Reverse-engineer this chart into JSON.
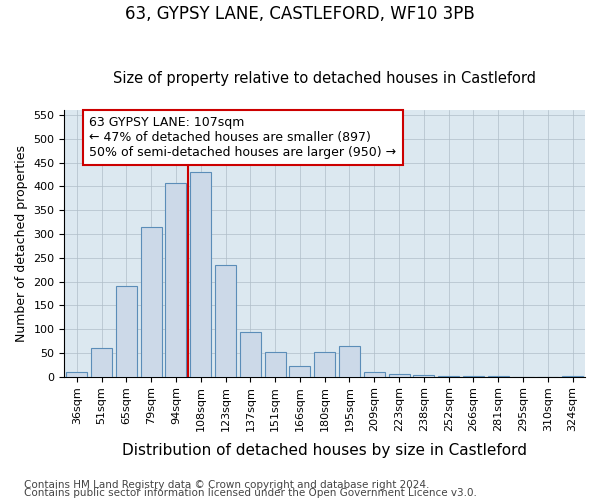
{
  "title1": "63, GYPSY LANE, CASTLEFORD, WF10 3PB",
  "title2": "Size of property relative to detached houses in Castleford",
  "xlabel": "Distribution of detached houses by size in Castleford",
  "ylabel": "Number of detached properties",
  "categories": [
    "36sqm",
    "51sqm",
    "65sqm",
    "79sqm",
    "94sqm",
    "108sqm",
    "123sqm",
    "137sqm",
    "151sqm",
    "166sqm",
    "180sqm",
    "195sqm",
    "209sqm",
    "223sqm",
    "238sqm",
    "252sqm",
    "266sqm",
    "281sqm",
    "295sqm",
    "310sqm",
    "324sqm"
  ],
  "values": [
    10,
    60,
    190,
    315,
    408,
    430,
    235,
    93,
    52,
    22,
    52,
    65,
    9,
    5,
    3,
    2,
    1,
    1,
    0,
    0,
    2
  ],
  "bar_color": "#ccd9e8",
  "bar_edge_color": "#5b8db8",
  "vline_color": "#cc0000",
  "annotation_text": "63 GYPSY LANE: 107sqm\n← 47% of detached houses are smaller (897)\n50% of semi-detached houses are larger (950) →",
  "annotation_box_facecolor": "white",
  "annotation_box_edgecolor": "#cc0000",
  "ylim": [
    0,
    560
  ],
  "yticks": [
    0,
    50,
    100,
    150,
    200,
    250,
    300,
    350,
    400,
    450,
    500,
    550
  ],
  "fig_bg_color": "#ffffff",
  "plot_bg_color": "#dce8f0",
  "title1_fontsize": 12,
  "title2_fontsize": 10.5,
  "xlabel_fontsize": 11,
  "ylabel_fontsize": 9,
  "tick_fontsize": 8,
  "footer_fontsize": 7.5,
  "footer1": "Contains HM Land Registry data © Crown copyright and database right 2024.",
  "footer2": "Contains public sector information licensed under the Open Government Licence v3.0."
}
